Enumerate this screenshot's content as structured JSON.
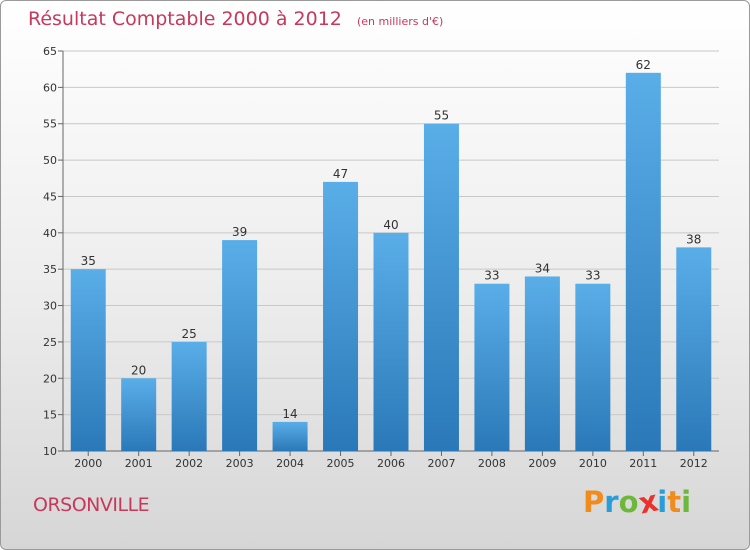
{
  "header": {
    "title": "Résultat Comptable 2000 à 2012",
    "subtitle": "(en milliers d'€)"
  },
  "footer": {
    "town": "ORSONVILLE",
    "logo_letters": [
      "P",
      "r",
      "o",
      "x",
      "i",
      "t",
      "i"
    ],
    "logo_colors": [
      "#f08c1e",
      "#2a9dd8",
      "#6cb83a",
      "#e8322b",
      "#2a9dd8",
      "#f08c1e",
      "#6cb83a"
    ]
  },
  "colors": {
    "bar_top": "#5aaee8",
    "bar_bottom": "#2a78b8",
    "grid": "#c8c8c8",
    "accent": "#c8385a"
  },
  "chart_data": {
    "type": "bar",
    "title": "Résultat Comptable 2000 à 2012",
    "subtitle": "(en milliers d'€)",
    "xlabel": "",
    "ylabel": "",
    "categories": [
      "2000",
      "2001",
      "2002",
      "2003",
      "2004",
      "2005",
      "2006",
      "2007",
      "2008",
      "2009",
      "2010",
      "2011",
      "2012"
    ],
    "values": [
      35,
      20,
      25,
      39,
      14,
      47,
      40,
      55,
      33,
      34,
      33,
      62,
      38
    ],
    "ylim": [
      10,
      65
    ],
    "yticks": [
      10,
      15,
      20,
      25,
      30,
      35,
      40,
      45,
      50,
      55,
      60,
      65
    ],
    "grid": true,
    "legend": "none"
  }
}
